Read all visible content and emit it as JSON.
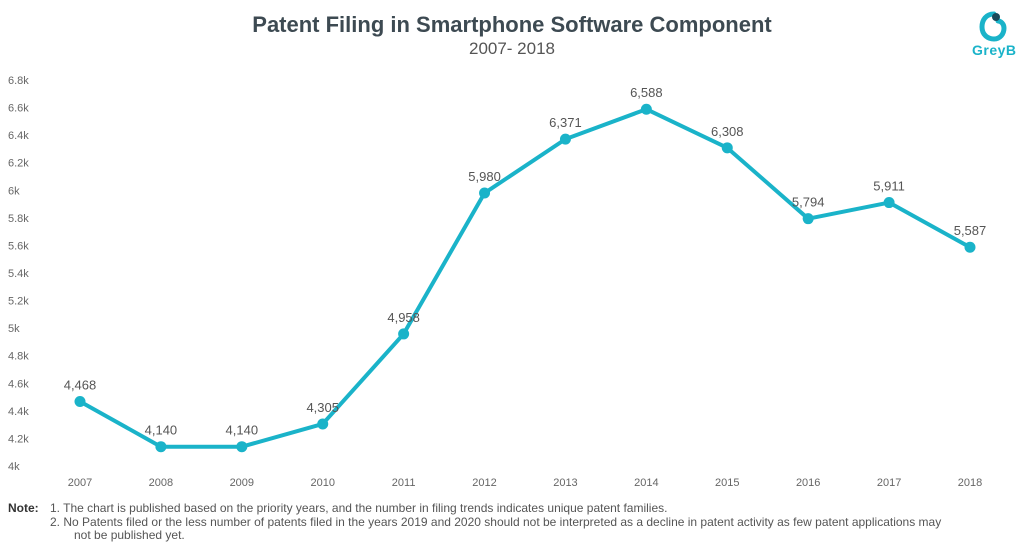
{
  "chart_data": {
    "type": "line",
    "title": "Patent Filing in Smartphone Software Component",
    "subtitle": "2007- 2018",
    "categories": [
      "2007",
      "2008",
      "2009",
      "2010",
      "2011",
      "2012",
      "2013",
      "2014",
      "2015",
      "2016",
      "2017",
      "2018"
    ],
    "values": [
      4468,
      4140,
      4140,
      4305,
      4958,
      5980,
      6371,
      6588,
      6308,
      5794,
      5911,
      5587
    ],
    "data_labels": [
      "4,468",
      "4,140",
      "4,140",
      "4,305",
      "4,958",
      "5,980",
      "6,371",
      "6,588",
      "6,308",
      "5,794",
      "5,911",
      "5,587"
    ],
    "ylim": [
      4000,
      6800
    ],
    "yticks": [
      4000,
      4200,
      4400,
      4600,
      4800,
      5000,
      5200,
      5400,
      5600,
      5800,
      6000,
      6200,
      6400,
      6600,
      6800
    ],
    "ytick_labels": [
      "4k",
      "4.2k",
      "4.4k",
      "4.6k",
      "4.8k",
      "5k",
      "5.2k",
      "5.4k",
      "5.6k",
      "5.8k",
      "6k",
      "6.2k",
      "6.4k",
      "6.6k",
      "6.8k"
    ],
    "grid": false,
    "line_color": "#1ab3c9"
  },
  "logo": {
    "text": "GreyB",
    "color": "#1ab3c9"
  },
  "notes": {
    "label": "Note:",
    "line1": "1. The chart is published based on the priority years, and the number in filing trends indicates unique patent families.",
    "line2": "2. No Patents filed or the less number of patents filed in the years 2019 and 2020 should not be interpreted as a decline in patent activity as few patent applications may",
    "line3": "not be published yet."
  }
}
